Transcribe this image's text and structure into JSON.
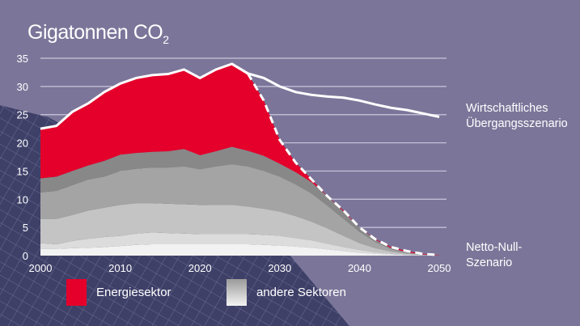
{
  "title": {
    "main": "Gigatonnen CO",
    "subscript": "2"
  },
  "colors": {
    "background": "#7b7699",
    "energy": "#e4002b",
    "others": [
      "#f2f2f2",
      "#dcdcdc",
      "#c4c4c4",
      "#a4a4a4",
      "#888888"
    ],
    "lines": "#ffffff"
  },
  "legend": {
    "energy": "Energiesektor",
    "others": "andere Sektoren"
  },
  "scenario_labels": {
    "economic": [
      "Wirtschaftliches",
      "Übergangsszenario"
    ],
    "netzero": [
      "Netto-Null-",
      "Szenario"
    ]
  },
  "chart_data": {
    "type": "area",
    "stacked": true,
    "title": "Gigatonnen CO2",
    "xlim": [
      2000,
      2050
    ],
    "ylim": [
      0,
      35
    ],
    "x_ticks": [
      2000,
      2010,
      2020,
      2030,
      2040,
      2050
    ],
    "y_ticks": [
      0,
      5,
      10,
      15,
      20,
      25,
      30,
      35
    ],
    "grid": "horizontal",
    "x": [
      2000,
      2002,
      2004,
      2006,
      2008,
      2010,
      2012,
      2014,
      2016,
      2018,
      2020,
      2022,
      2024,
      2026,
      2028,
      2030,
      2032,
      2034,
      2036,
      2038,
      2040,
      2042,
      2044,
      2046,
      2048,
      2050
    ],
    "other_sector_layers": [
      [
        1.2,
        1.2,
        1.3,
        1.4,
        1.5,
        1.7,
        1.9,
        2.0,
        2.0,
        2.0,
        2.0,
        2.0,
        2.0,
        2.0,
        1.9,
        1.8,
        1.6,
        1.4,
        1.1,
        0.8,
        0.5,
        0.3,
        0.2,
        0.1,
        0.05,
        0
      ],
      [
        1.0,
        0.8,
        1.3,
        1.6,
        1.8,
        1.8,
        2.0,
        2.1,
        2.0,
        1.9,
        1.8,
        1.8,
        1.8,
        1.8,
        1.8,
        1.7,
        1.5,
        1.3,
        1.0,
        0.7,
        0.5,
        0.3,
        0.1,
        0.05,
        0,
        0
      ],
      [
        4.3,
        4.5,
        4.6,
        5.0,
        5.2,
        5.5,
        5.4,
        5.2,
        5.2,
        5.2,
        5.2,
        5.2,
        5.2,
        4.9,
        4.6,
        4.3,
        3.9,
        3.3,
        2.7,
        2.0,
        1.2,
        0.7,
        0.4,
        0.15,
        0.05,
        0
      ],
      [
        4.7,
        5.0,
        5.3,
        5.5,
        5.5,
        6.0,
        6.1,
        6.3,
        6.4,
        6.7,
        6.3,
        6.8,
        7.2,
        7.1,
        6.7,
        6.2,
        5.6,
        5.0,
        4.0,
        3.0,
        2.0,
        1.1,
        0.4,
        0.2,
        0.05,
        0.02
      ],
      [
        2.5,
        2.5,
        2.5,
        2.5,
        2.8,
        2.9,
        2.8,
        2.8,
        2.9,
        3.1,
        2.5,
        2.7,
        3.1,
        2.8,
        2.7,
        2.3,
        2.2,
        2.0,
        1.7,
        1.3,
        0.8,
        0.4,
        0.2,
        0.1,
        0.05,
        0.03
      ]
    ],
    "series": [
      {
        "name": "Energiesektor",
        "values": [
          8.8,
          9.0,
          10.5,
          11.0,
          12.2,
          12.6,
          13.3,
          13.6,
          13.7,
          14.1,
          13.7,
          14.5,
          14.7,
          13.7,
          9.8,
          4.2,
          1.7,
          0.5,
          0,
          0.2,
          0,
          0.1,
          0.2,
          0.2,
          0.1,
          0.05
        ]
      }
    ],
    "lines": [
      {
        "name": "Wirtschaftliches Übergangsszenario",
        "style": "solid",
        "x": [
          2024,
          2026,
          2028,
          2030,
          2032,
          2034,
          2036,
          2038,
          2040,
          2042,
          2044,
          2046,
          2048,
          2050
        ],
        "values": [
          34.0,
          32.3,
          31.5,
          30.0,
          29.0,
          28.5,
          28.2,
          28.0,
          27.5,
          26.8,
          26.2,
          25.8,
          25.2,
          24.6
        ]
      },
      {
        "name": "Netto-Null-Szenario",
        "style": "dashed",
        "x": [
          2026,
          2028,
          2030,
          2032,
          2034,
          2036,
          2038,
          2040,
          2042,
          2044,
          2046,
          2048,
          2050
        ],
        "values": [
          32.3,
          27.5,
          20.5,
          16.5,
          13.5,
          10.5,
          8.0,
          5.0,
          2.9,
          1.5,
          0.8,
          0.3,
          0.1
        ]
      }
    ]
  }
}
